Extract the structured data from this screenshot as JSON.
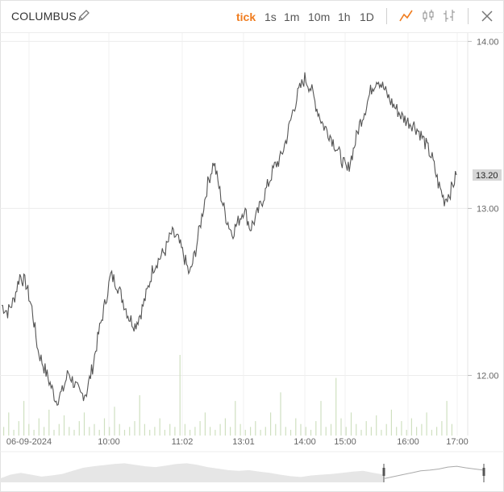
{
  "toolbar": {
    "title": "COLUMBUS",
    "timeframes": [
      "tick",
      "1s",
      "1m",
      "10m",
      "1h",
      "1D"
    ],
    "active_timeframe": "tick",
    "accent_color": "#f07c1e",
    "icons": [
      "edit-icon",
      "line-chart-icon",
      "candlestick-icon",
      "ohlc-bar-icon",
      "close-icon"
    ]
  },
  "chart_data": {
    "type": "line",
    "series": [
      {
        "values": [
          12.42,
          12.38,
          12.45,
          12.6,
          12.55,
          12.4,
          12.15,
          12.05,
          11.95,
          11.85,
          11.9,
          12.02,
          11.95,
          11.88,
          11.9,
          12.05,
          12.25,
          12.42,
          12.6,
          12.55,
          12.45,
          12.35,
          12.3,
          12.38,
          12.5,
          12.65,
          12.7,
          12.75,
          12.85,
          12.82,
          12.72,
          12.6,
          12.75,
          12.95,
          13.15,
          13.28,
          13.1,
          12.95,
          12.85,
          12.92,
          13.0,
          12.88,
          12.95,
          13.05,
          13.15,
          13.25,
          13.3,
          13.42,
          13.58,
          13.7,
          13.78,
          13.72,
          13.6,
          13.5,
          13.45,
          13.38,
          13.3,
          13.22,
          13.35,
          13.5,
          13.6,
          13.72,
          13.78,
          13.72,
          13.65,
          13.6,
          13.55,
          13.52,
          13.5,
          13.45,
          13.38,
          13.3,
          13.15,
          13.05,
          13.1,
          13.2
        ]
      }
    ],
    "x_ticks": [
      "06-09-2024",
      "10:00",
      "11:02",
      "13:01",
      "14:00",
      "15:00",
      "16:00",
      "17:00"
    ],
    "y_ticks": [
      "14.00",
      "13.00",
      "12.00"
    ],
    "ylim": [
      11.64,
      14.05
    ],
    "last_price": "13.20",
    "volume": [
      3,
      8,
      2,
      5,
      12,
      4,
      2,
      6,
      3,
      9,
      2,
      4,
      7,
      3,
      2,
      5,
      8,
      3,
      4,
      2,
      6,
      3,
      10,
      4,
      2,
      3,
      5,
      14,
      4,
      2,
      3,
      6,
      2,
      4,
      3,
      28,
      4,
      2,
      3,
      5,
      8,
      3,
      2,
      4,
      6,
      3,
      12,
      4,
      2,
      3,
      5,
      2,
      3,
      8,
      4,
      15,
      3,
      2,
      6,
      4,
      3,
      2,
      5,
      12,
      3,
      4,
      20,
      6,
      3,
      8,
      4,
      2,
      5,
      3,
      7,
      2,
      4,
      9,
      3,
      5,
      2,
      6,
      3,
      4,
      8,
      2,
      3,
      5,
      12,
      4
    ],
    "navigator_values": [
      12.4,
      12.5,
      12.55,
      12.5,
      12.45,
      12.48,
      12.52,
      12.6,
      12.68,
      12.72,
      12.75,
      12.78,
      12.8,
      12.76,
      12.72,
      12.7,
      12.74,
      12.78,
      12.8,
      12.76,
      12.7,
      12.66,
      12.62,
      12.6,
      12.62,
      12.58,
      12.55,
      12.5,
      12.46,
      12.44,
      12.48,
      12.5,
      12.52,
      12.55,
      12.58,
      12.6,
      12.55,
      12.5
    ],
    "navigator_window_values": [
      12.4,
      12.45,
      12.5,
      12.55,
      12.6,
      12.62,
      12.65,
      12.7,
      12.72,
      12.68,
      12.65,
      12.62
    ],
    "grid": true,
    "line_color": "#555555",
    "volume_color": "#cfe0c0"
  }
}
